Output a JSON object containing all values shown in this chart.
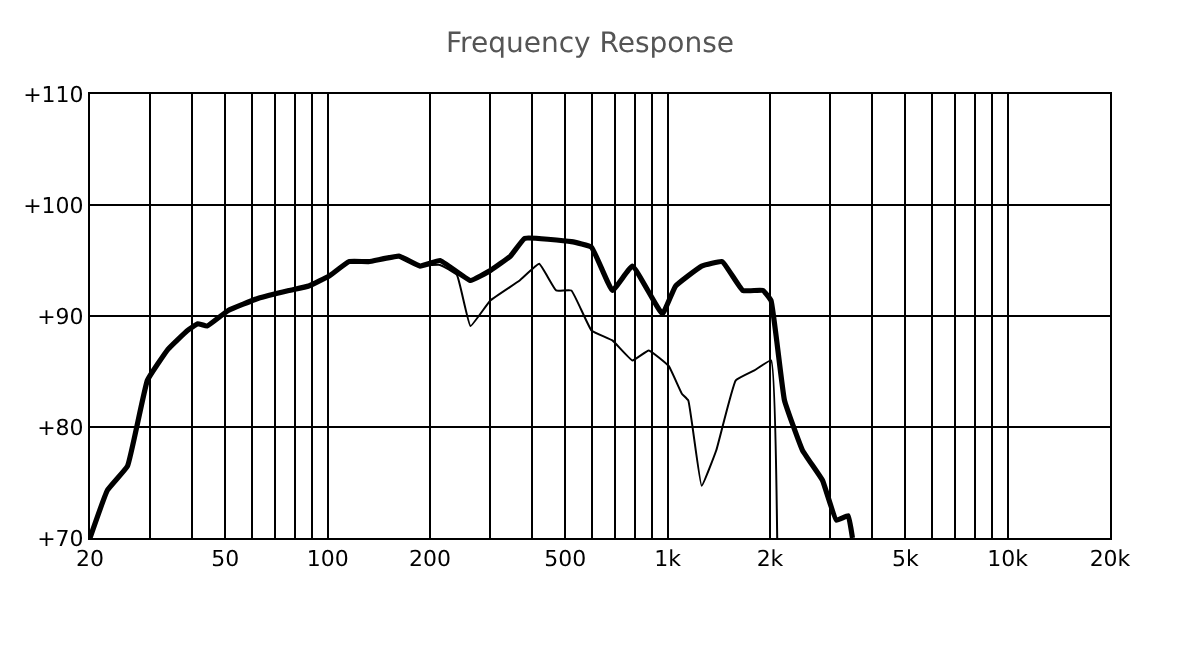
{
  "chart_data": {
    "type": "line",
    "title": "Frequency Response",
    "log": "x",
    "grid": true,
    "marker": "none",
    "line_style": "solid",
    "xlim": [
      20,
      20000
    ],
    "ylim": [
      70,
      110
    ],
    "xticks": [
      20,
      {
        "value": 30,
        "label": null
      },
      {
        "value": 40,
        "label": null
      },
      50,
      {
        "value": 60,
        "label": null
      },
      {
        "value": 70,
        "label": null
      },
      {
        "value": 80,
        "label": null
      },
      {
        "value": 90,
        "label": null
      },
      100,
      200,
      {
        "value": 300,
        "label": null
      },
      {
        "value": 400,
        "label": null
      },
      500,
      {
        "value": 600,
        "label": null
      },
      {
        "value": 700,
        "label": null
      },
      {
        "value": 800,
        "label": null
      },
      {
        "value": 900,
        "label": null
      },
      {
        "value": 1000,
        "label": "1k"
      },
      {
        "value": 2000,
        "label": "2k"
      },
      {
        "value": 3000,
        "label": null
      },
      {
        "value": 4000,
        "label": null
      },
      {
        "value": 5000,
        "label": "5k"
      },
      {
        "value": 6000,
        "label": null
      },
      {
        "value": 7000,
        "label": null
      },
      {
        "value": 8000,
        "label": null
      },
      {
        "value": 9000,
        "label": null
      },
      {
        "value": 10000,
        "label": "10k"
      },
      {
        "value": 20000,
        "label": "20k"
      }
    ],
    "yticks": [
      {
        "value": 70,
        "label": "+70"
      },
      {
        "value": 80,
        "label": "+80"
      },
      {
        "value": 90,
        "label": "+90"
      },
      {
        "value": 100,
        "label": "+100"
      },
      {
        "value": 110,
        "label": "+110"
      }
    ],
    "series": [
      {
        "color": "#000000",
        "x": [
          20,
          22.5,
          25.8,
          29.5,
          33.9,
          38.7,
          41.5,
          44.2,
          51,
          62.6,
          76.9,
          88,
          101,
          115.5,
          132,
          162,
          187,
          214,
          263,
          301,
          345,
          380,
          521,
          597,
          688,
          788,
          965,
          1055,
          1259,
          1447,
          1664,
          1908,
          2014,
          2206,
          2492,
          2853,
          3135,
          3396,
          3496
        ],
        "values": [
          70,
          74.3,
          76.5,
          84.2,
          87,
          88.7,
          89.3,
          89.1,
          90.5,
          91.6,
          92.3,
          92.7,
          93.6,
          94.9,
          94.9,
          95.4,
          94.5,
          95,
          93.2,
          94.1,
          95.4,
          97,
          96.7,
          96.2,
          92.3,
          94.5,
          90.2,
          92.7,
          94.5,
          94.9,
          92.3,
          92.3,
          91.4,
          82.4,
          77.9,
          75.2,
          71.6,
          72,
          70
        ]
      },
      {
        "color": "#000000",
        "x": [
          187,
          214,
          240,
          263,
          301,
          367,
          419,
          470,
          521,
          597,
          688,
          788,
          880,
          1007,
          1101,
          1150,
          1259,
          1390,
          1586,
          1800,
          2014,
          2100
        ],
        "values": [
          94.5,
          94.6,
          93.7,
          89.1,
          91.4,
          93.2,
          94.7,
          92.3,
          92.3,
          88.7,
          87.8,
          86,
          86.9,
          85.5,
          83,
          82.4,
          74.7,
          77.9,
          84.2,
          85.1,
          86,
          70
        ]
      }
    ]
  }
}
